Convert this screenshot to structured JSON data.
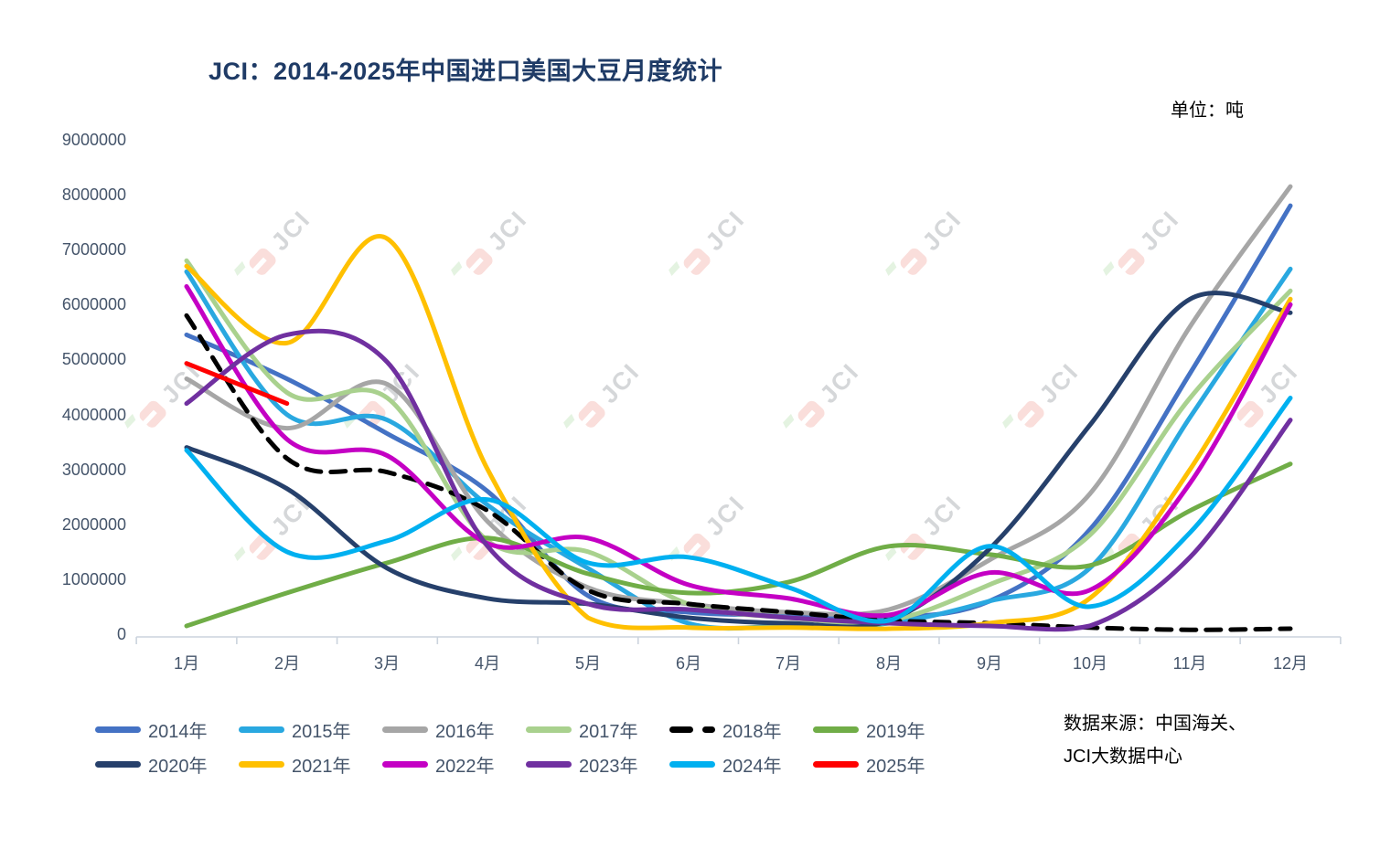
{
  "page": {
    "title": "JCI：2014-2025年中国进口美国大豆月度统计",
    "unit_label": "单位：吨",
    "watermark_text": "JCI",
    "source_line1": "数据来源：中国海关、",
    "source_line2": "JCI大数据中心"
  },
  "chart_data": {
    "type": "line",
    "title": "JCI：2014-2025年中国进口美国大豆月度统计",
    "unit": "吨",
    "xlabel": "",
    "ylabel": "",
    "grid": false,
    "legend_position": "bottom",
    "smooth_lines": true,
    "ylim": [
      0,
      9000000
    ],
    "x_categories": [
      "1月",
      "2月",
      "3月",
      "4月",
      "5月",
      "6月",
      "7月",
      "8月",
      "9月",
      "10月",
      "11月",
      "12月"
    ],
    "y_ticks": [
      0,
      1000000,
      2000000,
      3000000,
      4000000,
      5000000,
      6000000,
      7000000,
      8000000,
      9000000
    ],
    "y_tick_labels": [
      "0",
      "1000000",
      "2000000",
      "3000000",
      "4000000",
      "5000000",
      "6000000",
      "7000000",
      "8000000",
      "9000000"
    ],
    "series": [
      {
        "name": "2014年",
        "color": "#4472C4",
        "dash": false,
        "values": [
          5450000,
          4650000,
          3650000,
          2600000,
          700000,
          400000,
          350000,
          300000,
          600000,
          1900000,
          4750000,
          7800000
        ]
      },
      {
        "name": "2015年",
        "color": "#29A8E0",
        "dash": false,
        "values": [
          6600000,
          4000000,
          3900000,
          2350000,
          1200000,
          200000,
          150000,
          200000,
          600000,
          1200000,
          3950000,
          6650000
        ]
      },
      {
        "name": "2016年",
        "color": "#A6A6A6",
        "dash": false,
        "values": [
          4650000,
          3750000,
          4550000,
          2050000,
          850000,
          550000,
          400000,
          450000,
          1350000,
          2550000,
          5600000,
          8150000
        ]
      },
      {
        "name": "2017年",
        "color": "#A9D18E",
        "dash": false,
        "values": [
          6800000,
          4400000,
          4300000,
          1700000,
          1500000,
          550000,
          300000,
          250000,
          900000,
          1800000,
          4300000,
          6250000
        ]
      },
      {
        "name": "2018年",
        "color": "#000000",
        "dash": true,
        "values": [
          5800000,
          3200000,
          2950000,
          2250000,
          800000,
          550000,
          400000,
          250000,
          200000,
          120000,
          80000,
          100000
        ]
      },
      {
        "name": "2019年",
        "color": "#70AD47",
        "dash": false,
        "values": [
          150000,
          750000,
          1300000,
          1750000,
          1100000,
          750000,
          950000,
          1600000,
          1450000,
          1250000,
          2250000,
          3100000
        ]
      },
      {
        "name": "2020年",
        "color": "#26406B",
        "dash": false,
        "values": [
          3400000,
          2650000,
          1200000,
          650000,
          550000,
          300000,
          200000,
          250000,
          1550000,
          3800000,
          6100000,
          5850000
        ]
      },
      {
        "name": "2021年",
        "color": "#FFC000",
        "dash": false,
        "values": [
          6700000,
          5300000,
          7200000,
          3000000,
          300000,
          120000,
          120000,
          100000,
          200000,
          650000,
          3000000,
          6100000
        ]
      },
      {
        "name": "2022年",
        "color": "#C400C4",
        "dash": false,
        "values": [
          6330000,
          3550000,
          3250000,
          1650000,
          1750000,
          900000,
          650000,
          350000,
          1120000,
          800000,
          2750000,
          6000000
        ]
      },
      {
        "name": "2023年",
        "color": "#7030A0",
        "dash": false,
        "values": [
          4200000,
          5450000,
          4950000,
          1600000,
          550000,
          450000,
          300000,
          200000,
          150000,
          150000,
          1400000,
          3900000
        ]
      },
      {
        "name": "2024年",
        "color": "#00B0F0",
        "dash": false,
        "values": [
          3350000,
          1500000,
          1700000,
          2450000,
          1300000,
          1400000,
          850000,
          250000,
          1600000,
          500000,
          1850000,
          4300000
        ]
      },
      {
        "name": "2025年",
        "color": "#FF0000",
        "dash": false,
        "values": [
          4930000,
          4200000
        ]
      }
    ]
  }
}
